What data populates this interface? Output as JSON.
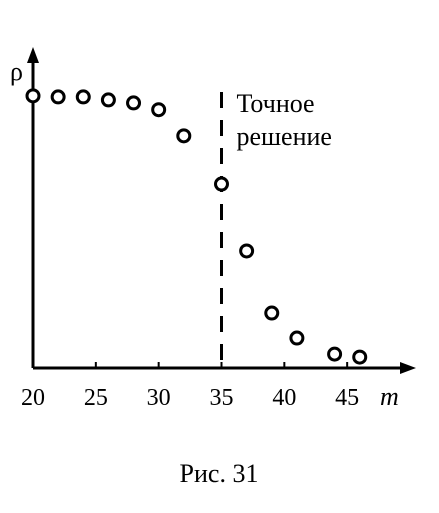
{
  "chart_data": {
    "type": "scatter",
    "x": [
      20,
      22,
      24,
      26,
      28,
      30,
      32,
      35,
      37,
      39,
      41,
      44,
      46
    ],
    "values": [
      1,
      0.996,
      0.996,
      0.985,
      0.974,
      0.949,
      0.853,
      0.676,
      0.43,
      0.202,
      0.11,
      0.051,
      0.04
    ],
    "xlim": [
      20,
      50
    ],
    "ylim": [
      0,
      1.15
    ],
    "xticks": [
      20,
      25,
      30,
      35,
      40,
      45
    ],
    "x_label": "m",
    "y_label": "ρ",
    "annotation": {
      "lines": [
        "Точное",
        "решение"
      ],
      "x": 35
    },
    "caption": "Рис. 31",
    "color": "#000000"
  }
}
